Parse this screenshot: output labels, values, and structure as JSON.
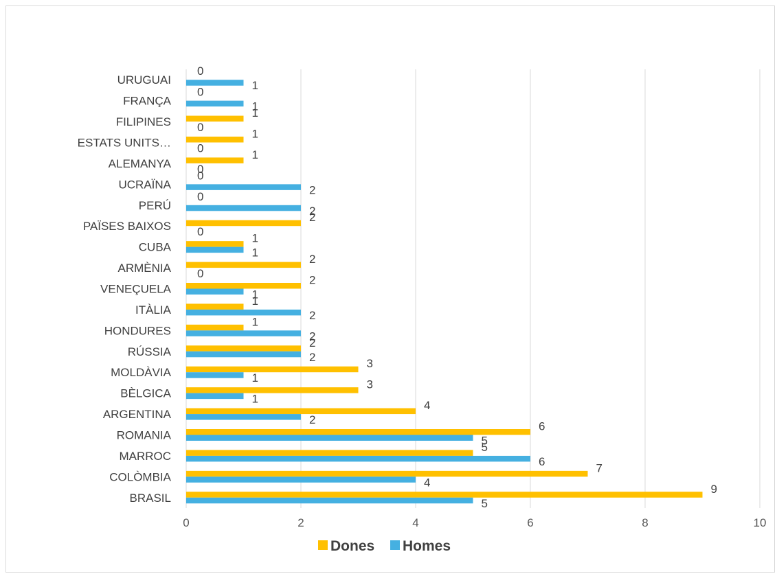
{
  "chart_data": {
    "type": "bar",
    "orientation": "horizontal",
    "title": "",
    "xlabel": "",
    "ylabel": "",
    "categories": [
      "BRASIL",
      "COLÒMBIA",
      "MARROC",
      "ROMANIA",
      "ARGENTINA",
      "BÈLGICA",
      "MOLDÀVIA",
      "RÚSSIA",
      "HONDURES",
      "ITÀLIA",
      "VENEÇUELA",
      "ARMÈNIA",
      "CUBA",
      "PAÏSES BAIXOS",
      "PERÚ",
      "UCRAÏNA",
      "ALEMANYA",
      "ESTATS UNITS…",
      "FILIPINES",
      "FRANÇA",
      "URUGUAI"
    ],
    "series": [
      {
        "name": "Dones",
        "color": "#FFC000",
        "values": [
          9,
          7,
          5,
          6,
          4,
          3,
          3,
          2,
          1,
          1,
          2,
          2,
          1,
          2,
          0,
          0,
          1,
          1,
          1,
          0,
          0
        ]
      },
      {
        "name": "Homes",
        "color": "#45B0E1",
        "values": [
          5,
          4,
          6,
          5,
          2,
          1,
          1,
          2,
          2,
          2,
          1,
          0,
          1,
          0,
          2,
          2,
          0,
          0,
          0,
          1,
          1
        ]
      }
    ],
    "xlim": [
      0,
      10
    ],
    "xticks": [
      "0",
      "2",
      "4",
      "6",
      "8",
      "10"
    ],
    "grid": true,
    "legend_position": "bottom"
  }
}
